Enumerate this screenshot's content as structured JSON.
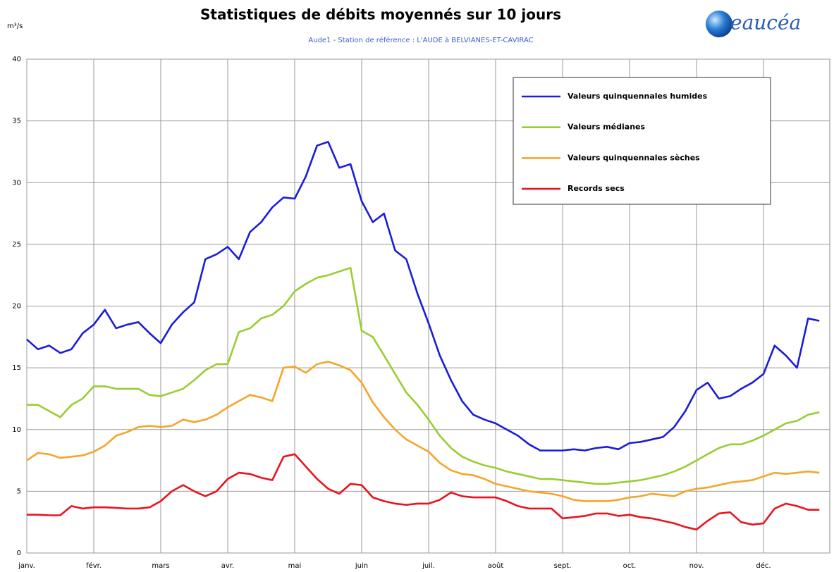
{
  "chart_data": {
    "type": "line",
    "title": "Statistiques de débits moyennés sur 10 jours",
    "subtitle": "Aude1 - Station de référence : L'AUDE à BELVIANES-ET-CAVIRAC",
    "y_label": "m³/s",
    "logo": "eaucéa",
    "categories": [
      "janv.",
      null,
      null,
      null,
      null,
      null,
      "févr.",
      null,
      null,
      null,
      null,
      null,
      "mars",
      null,
      null,
      null,
      null,
      null,
      "avr.",
      null,
      null,
      null,
      null,
      null,
      "mai",
      null,
      null,
      null,
      null,
      null,
      "juin",
      null,
      null,
      null,
      null,
      null,
      "juil.",
      null,
      null,
      null,
      null,
      null,
      "août",
      null,
      null,
      null,
      null,
      null,
      "sept.",
      null,
      null,
      null,
      null,
      null,
      "oct.",
      null,
      null,
      null,
      null,
      null,
      "nov.",
      null,
      null,
      null,
      null,
      null,
      "déc.",
      null,
      null,
      null,
      null,
      null
    ],
    "series": [
      {
        "name": "Valeurs quinquennales humides",
        "color": "#1c1cd8",
        "values": [
          17.3,
          16.5,
          16.8,
          16.2,
          16.5,
          17.8,
          18.5,
          19.7,
          18.2,
          18.5,
          18.7,
          17.8,
          17.0,
          18.5,
          19.5,
          20.3,
          23.8,
          24.2,
          24.8,
          23.8,
          26,
          26.8,
          28,
          28.8,
          28.7,
          30.5,
          33,
          33.3,
          31.2,
          31.5,
          28.5,
          26.8,
          27.5,
          24.5,
          23.8,
          21,
          18.6,
          16,
          14,
          12.3,
          11.2,
          10.8,
          10.5,
          10,
          9.5,
          8.8,
          8.3,
          8.3,
          8.3,
          8.4,
          8.3,
          8.5,
          8.6,
          8.4,
          8.9,
          9.0,
          9.2,
          9.4,
          10.2,
          11.5,
          13.2,
          13.8,
          12.5,
          12.7,
          13.3,
          13.8,
          14.5,
          16.8,
          16,
          15,
          19,
          18.8
        ]
      },
      {
        "name": "Valeurs médianes",
        "color": "#9acd32",
        "values": [
          12,
          12,
          11.5,
          11,
          12,
          12.5,
          13.5,
          13.5,
          13.3,
          13.3,
          13.3,
          12.8,
          12.7,
          13,
          13.3,
          14,
          14.8,
          15.3,
          15.3,
          17.9,
          18.2,
          19,
          19.3,
          20,
          21.2,
          21.8,
          22.3,
          22.5,
          22.8,
          23.1,
          18.0,
          17.5,
          16,
          14.5,
          13,
          12,
          10.8,
          9.5,
          8.5,
          7.8,
          7.4,
          7.1,
          6.9,
          6.6,
          6.4,
          6.2,
          6.0,
          6.0,
          5.9,
          5.8,
          5.7,
          5.6,
          5.6,
          5.7,
          5.8,
          5.9,
          6.1,
          6.3,
          6.6,
          7.0,
          7.5,
          8.0,
          8.5,
          8.8,
          8.8,
          9.1,
          9.5,
          10.0,
          10.5,
          10.7,
          11.2,
          11.4
        ]
      },
      {
        "name": "Valeurs quinquennales sèches",
        "color": "#f5a52a",
        "values": [
          7.5,
          8.1,
          8.0,
          7.7,
          7.8,
          7.9,
          8.2,
          8.7,
          9.5,
          9.8,
          10.2,
          10.3,
          10.2,
          10.3,
          10.8,
          10.6,
          10.8,
          11.2,
          11.8,
          12.3,
          12.8,
          12.6,
          12.3,
          15.0,
          15.1,
          14.6,
          15.3,
          15.5,
          15.2,
          14.8,
          13.8,
          12.2,
          11.0,
          10.0,
          9.2,
          8.7,
          8.2,
          7.3,
          6.7,
          6.4,
          6.3,
          6.0,
          5.6,
          5.4,
          5.2,
          5.0,
          4.9,
          4.8,
          4.6,
          4.3,
          4.2,
          4.2,
          4.2,
          4.3,
          4.5,
          4.6,
          4.8,
          4.7,
          4.6,
          5.0,
          5.2,
          5.3,
          5.5,
          5.7,
          5.8,
          5.9,
          6.2,
          6.5,
          6.4,
          6.5,
          6.6,
          6.5
        ]
      },
      {
        "name": "Records secs",
        "color": "#e8141e",
        "values": [
          3.1,
          3.1,
          3.05,
          3.05,
          3.8,
          3.6,
          3.7,
          3.7,
          3.65,
          3.6,
          3.6,
          3.7,
          4.2,
          5.0,
          5.5,
          5.0,
          4.6,
          5.0,
          6.0,
          6.5,
          6.4,
          6.1,
          5.9,
          7.8,
          8.0,
          7.0,
          6.0,
          5.2,
          4.8,
          5.6,
          5.5,
          4.5,
          4.2,
          4.0,
          3.9,
          4.0,
          4.0,
          4.3,
          4.9,
          4.6,
          4.5,
          4.5,
          4.5,
          4.2,
          3.8,
          3.6,
          3.6,
          3.6,
          2.8,
          2.9,
          3.0,
          3.2,
          3.2,
          3.0,
          3.1,
          2.9,
          2.8,
          2.6,
          2.4,
          2.1,
          1.9,
          2.6,
          3.2,
          3.3,
          2.5,
          2.3,
          2.4,
          3.6,
          4.0,
          3.8,
          3.5,
          3.5
        ]
      }
    ],
    "ylim": [
      0,
      40
    ],
    "yticks": [
      0,
      5,
      10,
      15,
      20,
      25,
      30,
      35,
      40
    ],
    "grid": true,
    "legend": "upper right"
  }
}
